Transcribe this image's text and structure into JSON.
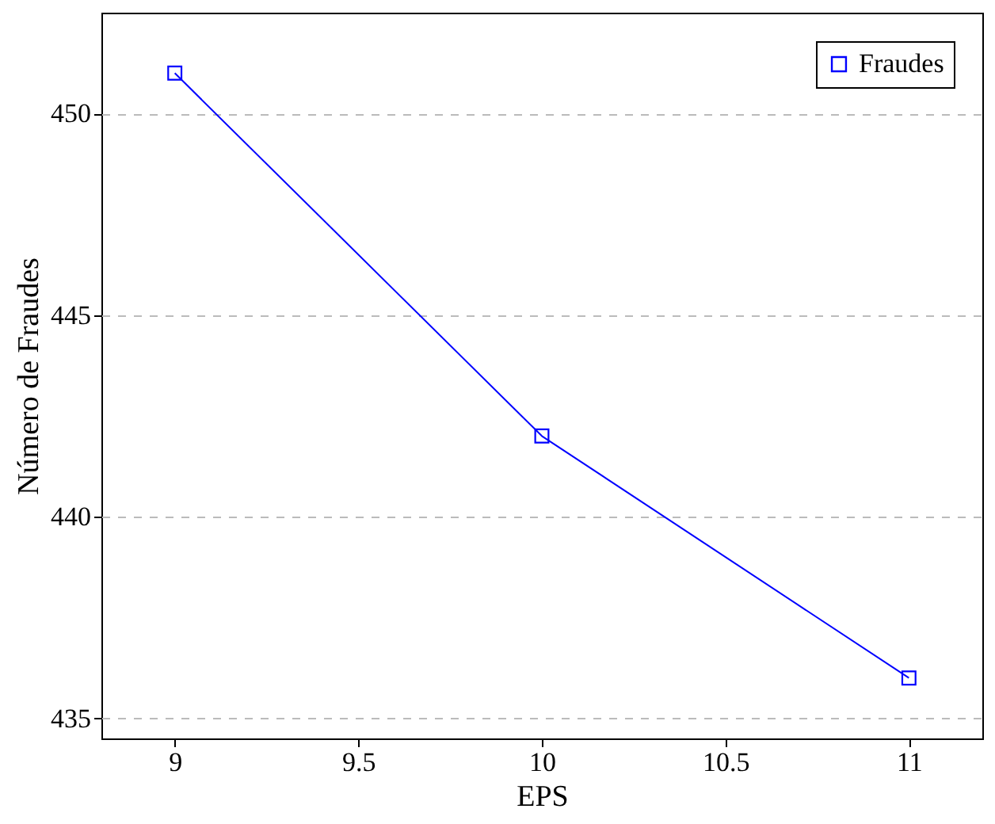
{
  "chart_data": {
    "type": "line",
    "xlabel": "EPS",
    "ylabel": "Número de Fraudes",
    "x": [
      9,
      10,
      11
    ],
    "series": [
      {
        "name": "Fraudes",
        "color": "#0000ff",
        "values": [
          451,
          442,
          436
        ]
      }
    ],
    "xlim": [
      8.8,
      11.2
    ],
    "ylim": [
      434.5,
      452.5
    ],
    "xticks": [
      9,
      9.5,
      10,
      10.5,
      11
    ],
    "yticks": [
      435,
      440,
      445,
      450
    ],
    "grid": "y",
    "legend": "top right",
    "marker": "square",
    "line_style": "solid"
  }
}
